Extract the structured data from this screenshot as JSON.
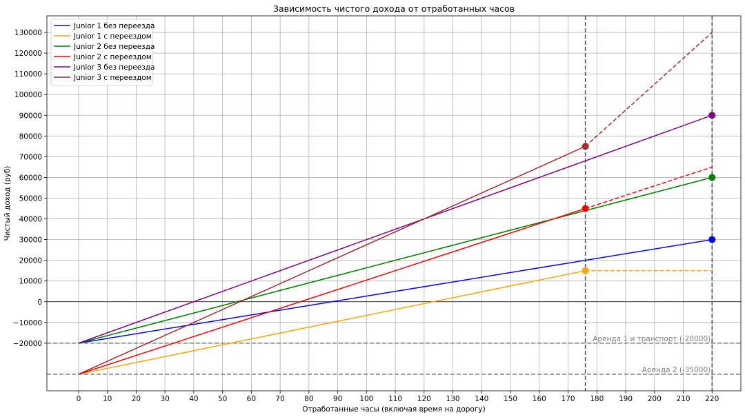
{
  "chart_data": {
    "type": "line",
    "title": "Зависимость чистого дохода от отработанных часов",
    "xlabel": "Отработанные часы (включая время на дорогу)",
    "ylabel": "Чистый доход (руб)",
    "xlim": [
      -11,
      230
    ],
    "ylim": [
      -43000,
      138000
    ],
    "xticks": [
      0,
      10,
      20,
      30,
      40,
      50,
      60,
      70,
      80,
      90,
      100,
      110,
      120,
      130,
      140,
      150,
      160,
      170,
      180,
      190,
      200,
      210,
      220
    ],
    "xtick_labels": [
      "0",
      "10",
      "20",
      "30",
      "40",
      "50",
      "60",
      "70",
      "80",
      "90",
      "100",
      "110",
      "120",
      "130",
      "140",
      "150",
      "160",
      "170",
      "180",
      "190",
      "200",
      "210",
      "220"
    ],
    "yticks": [
      -20000,
      -10000,
      0,
      10000,
      20000,
      30000,
      40000,
      50000,
      60000,
      70000,
      80000,
      90000,
      100000,
      110000,
      120000,
      130000
    ],
    "ytick_labels": [
      "−20000",
      "−10000",
      "0",
      "10000",
      "20000",
      "30000",
      "40000",
      "50000",
      "60000",
      "70000",
      "80000",
      "90000",
      "100000",
      "110000",
      "120000",
      "130000"
    ],
    "grid": true,
    "legend_position": "top-left",
    "series": [
      {
        "name": "Junior 1 без переезда",
        "color": "#0000ff",
        "solid": {
          "x": [
            0,
            220
          ],
          "y": [
            -20000,
            30000
          ]
        },
        "dashed": null,
        "marker": {
          "x": 220,
          "y": 30000
        }
      },
      {
        "name": "Junior 1 с переездом",
        "color": "#ffa500",
        "solid": {
          "x": [
            0,
            176
          ],
          "y": [
            -35000,
            15000
          ]
        },
        "dashed": {
          "x": [
            176,
            220
          ],
          "y": [
            15000,
            15000
          ]
        },
        "marker": {
          "x": 176,
          "y": 15000
        }
      },
      {
        "name": "Junior 2 без переезда",
        "color": "#008000",
        "solid": {
          "x": [
            0,
            220
          ],
          "y": [
            -20000,
            60000
          ]
        },
        "dashed": null,
        "marker": {
          "x": 220,
          "y": 60000
        }
      },
      {
        "name": "Junior 2 с переездом",
        "color": "#ff0000",
        "solid": {
          "x": [
            0,
            176
          ],
          "y": [
            -35000,
            45000
          ]
        },
        "dashed": {
          "x": [
            176,
            220
          ],
          "y": [
            45000,
            65000
          ]
        },
        "marker": {
          "x": 176,
          "y": 45000
        }
      },
      {
        "name": "Junior 3 без переезда",
        "color": "#800080",
        "solid": {
          "x": [
            0,
            220
          ],
          "y": [
            -20000,
            90000
          ]
        },
        "dashed": null,
        "marker": {
          "x": 220,
          "y": 90000
        }
      },
      {
        "name": "Junior 3 с переездом",
        "color": "#a52a2a",
        "solid": {
          "x": [
            0,
            176
          ],
          "y": [
            -35000,
            75000
          ]
        },
        "dashed": {
          "x": [
            176,
            220
          ],
          "y": [
            75000,
            130000
          ]
        },
        "marker": {
          "x": 176,
          "y": 75000
        }
      }
    ],
    "reference_lines": {
      "horizontal": [
        {
          "y": -20000,
          "label": "Аренда 1 и транспорт (-20000)",
          "color": "#808080"
        },
        {
          "y": -35000,
          "label": "Аренда 2 (-35000)",
          "color": "#808080"
        }
      ],
      "vertical": [
        {
          "x": 176,
          "color": "#505050"
        },
        {
          "x": 220,
          "color": "#505050"
        }
      ],
      "zero_line": {
        "y": 0,
        "color": "#000000"
      }
    }
  }
}
